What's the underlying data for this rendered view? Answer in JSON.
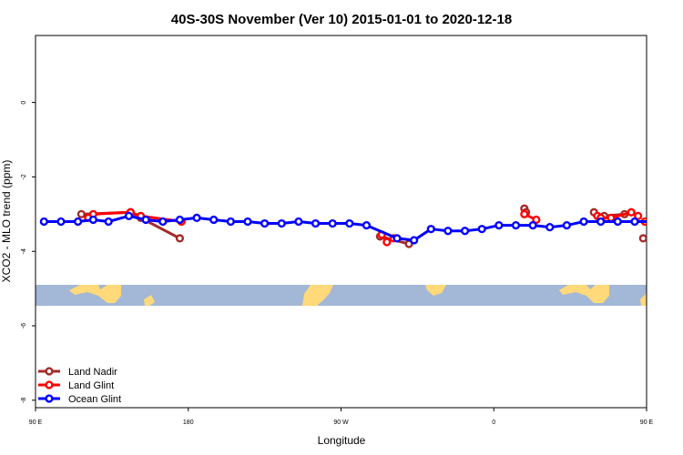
{
  "chart_data": {
    "type": "line",
    "title": "40S-30S November (Ver 10)   2015-01-01 to 2020-12-18",
    "xlabel": "Longitude",
    "ylabel": "XCO2 - MLO trend (ppm)",
    "xlim": [
      90,
      450
    ],
    "ylim": [
      -8.2,
      1.8
    ],
    "x_ticks": [
      {
        "value": 90,
        "label": "90 E"
      },
      {
        "value": 180,
        "label": "180"
      },
      {
        "value": 270,
        "label": "90 W"
      },
      {
        "value": 360,
        "label": "0"
      },
      {
        "value": 450,
        "label": "90 E"
      }
    ],
    "y_ticks": [
      {
        "value": 0,
        "label": "0"
      },
      {
        "value": -2,
        "label": "-2"
      },
      {
        "value": -4,
        "label": "-4"
      },
      {
        "value": -6,
        "label": "-6"
      },
      {
        "value": -8,
        "label": "-8"
      }
    ],
    "legend_position": "bottom-left",
    "series": [
      {
        "name": "Land Nadir",
        "color": "#a52a2a",
        "segments": [
          [
            [
              117,
              -3.0
            ],
            [
              146,
              -2.95
            ],
            [
              152,
              -3.1
            ],
            [
              175,
              -3.65
            ]
          ],
          [
            [
              293,
              -3.6
            ],
            [
              310,
              -3.8
            ]
          ],
          [
            [
              378,
              -2.85
            ],
            [
              379,
              -2.95
            ]
          ],
          [
            [
              419,
              -2.95
            ],
            [
              425,
              -3.05
            ],
            [
              437,
              -3.0
            ]
          ],
          [
            [
              448,
              -3.65
            ]
          ]
        ]
      },
      {
        "name": "Land Glint",
        "color": "#ff0000",
        "segments": [
          [
            [
              121,
              -3.1
            ],
            [
              124,
              -3.0
            ],
            [
              146,
              -2.95
            ],
            [
              152,
              -3.05
            ],
            [
              176,
              -3.2
            ]
          ],
          [
            [
              294,
              -3.55
            ],
            [
              297,
              -3.75
            ],
            [
              301,
              -3.65
            ]
          ],
          [
            [
              378,
              -3.0
            ],
            [
              385,
              -3.15
            ]
          ],
          [
            [
              421,
              -3.05
            ],
            [
              423,
              -3.1
            ],
            [
              429,
              -3.1
            ],
            [
              441,
              -2.95
            ],
            [
              445,
              -3.05
            ]
          ],
          [
            [
              449,
              -3.2
            ]
          ]
        ]
      },
      {
        "name": "Ocean Glint",
        "color": "#0000ff",
        "segments": [
          [
            [
              95,
              -3.2
            ],
            [
              105,
              -3.2
            ],
            [
              115,
              -3.2
            ],
            [
              124,
              -3.15
            ],
            [
              133,
              -3.2
            ],
            [
              145,
              -3.05
            ],
            [
              155,
              -3.15
            ],
            [
              165,
              -3.2
            ],
            [
              175,
              -3.15
            ],
            [
              185,
              -3.1
            ],
            [
              195,
              -3.15
            ],
            [
              205,
              -3.2
            ],
            [
              215,
              -3.2
            ],
            [
              225,
              -3.25
            ],
            [
              235,
              -3.25
            ],
            [
              245,
              -3.2
            ],
            [
              255,
              -3.25
            ],
            [
              265,
              -3.25
            ],
            [
              275,
              -3.25
            ],
            [
              285,
              -3.3
            ],
            [
              303,
              -3.65
            ],
            [
              313,
              -3.7
            ],
            [
              323,
              -3.4
            ],
            [
              333,
              -3.45
            ],
            [
              343,
              -3.45
            ],
            [
              353,
              -3.4
            ],
            [
              363,
              -3.3
            ],
            [
              373,
              -3.3
            ],
            [
              383,
              -3.3
            ],
            [
              393,
              -3.35
            ],
            [
              403,
              -3.3
            ],
            [
              413,
              -3.2
            ],
            [
              423,
              -3.2
            ],
            [
              433,
              -3.2
            ],
            [
              443,
              -3.2
            ],
            [
              453,
              -3.2
            ],
            [
              463,
              -3.2
            ],
            [
              473,
              -3.2
            ],
            [
              483,
              -3.2
            ],
            [
              493,
              -3.2
            ],
            [
              503,
              -3.2
            ]
          ]
        ]
      }
    ]
  }
}
